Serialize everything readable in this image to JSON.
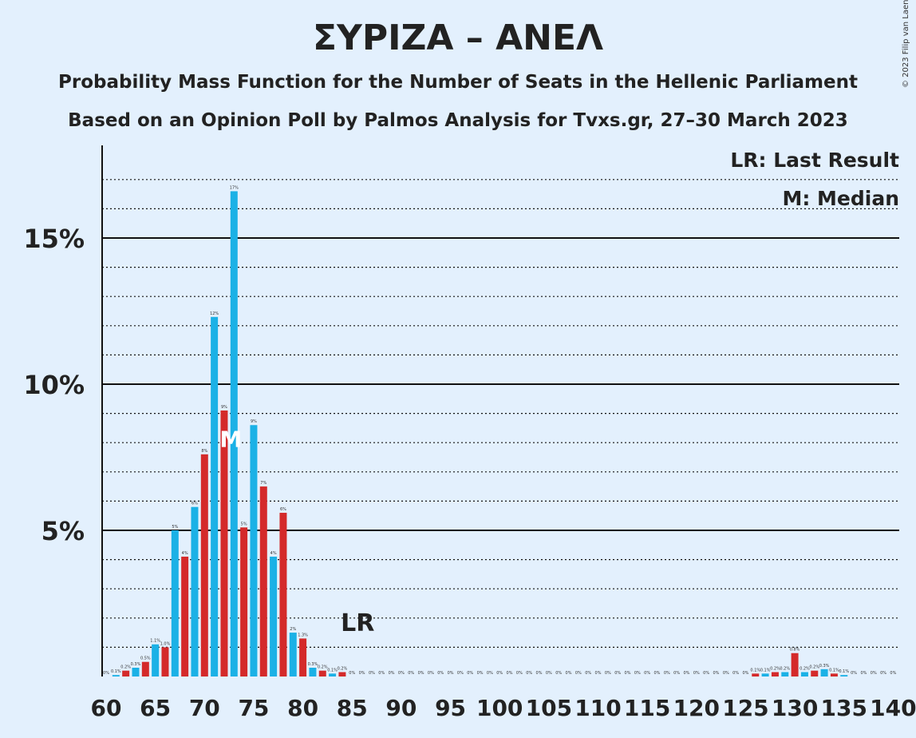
{
  "header": {
    "title": "ΣΥΡΙΖΑ – ΑΝΕΛ",
    "subtitle": "Probability Mass Function for the Number of Seats in the Hellenic Parliament",
    "subtitle2": "Based on an Opinion Poll by Palmos Analysis for Tvxs.gr, 27–30 March 2023",
    "copyright": "© 2023 Filip van Laenen"
  },
  "legend": {
    "lr": "LR: Last Result",
    "median": "M: Median"
  },
  "markers": {
    "lr_text": "LR",
    "median_text": "M"
  },
  "colors": {
    "background": "#e3f0fd",
    "series_blue": "#1bb1e6",
    "series_red": "#d42a2a"
  },
  "chart_data": {
    "type": "bar",
    "x": [
      60,
      61,
      62,
      63,
      64,
      65,
      66,
      67,
      68,
      69,
      70,
      71,
      72,
      73,
      74,
      75,
      76,
      77,
      78,
      79,
      80,
      81,
      82,
      83,
      84,
      85,
      86,
      87,
      88,
      89,
      90,
      91,
      92,
      93,
      94,
      95,
      96,
      97,
      98,
      99,
      100,
      101,
      102,
      103,
      104,
      105,
      106,
      107,
      108,
      109,
      110,
      111,
      112,
      113,
      114,
      115,
      116,
      117,
      118,
      119,
      120,
      121,
      122,
      123,
      124,
      125,
      126,
      127,
      128,
      129,
      130,
      131,
      132,
      133,
      134,
      135,
      136,
      137,
      138,
      139,
      140
    ],
    "values": [
      0,
      0.05,
      0.2,
      0.3,
      0.5,
      1.1,
      1.0,
      5.0,
      4.1,
      5.8,
      7.6,
      12.3,
      9.1,
      16.6,
      5.1,
      8.6,
      6.5,
      4.1,
      5.6,
      1.5,
      1.3,
      0.3,
      0.2,
      0.1,
      0.15,
      0,
      0,
      0,
      0,
      0,
      0,
      0,
      0,
      0,
      0,
      0,
      0,
      0,
      0,
      0,
      0,
      0,
      0,
      0,
      0,
      0,
      0,
      0,
      0,
      0,
      0,
      0,
      0,
      0,
      0,
      0,
      0,
      0,
      0,
      0,
      0,
      0,
      0,
      0,
      0,
      0,
      0.1,
      0.1,
      0.15,
      0.15,
      0.8,
      0.15,
      0.2,
      0.25,
      0.1,
      0.05,
      0,
      0,
      0,
      0,
      0
    ],
    "data_labels": [
      "0%",
      "0.1%",
      "0.2%",
      "0.3%",
      "0.5%",
      "1.1%",
      "1.0%",
      "5%",
      "4%",
      "6%",
      "8%",
      "12%",
      "9%",
      "17%",
      "5%",
      "9%",
      "7%",
      "4%",
      "6%",
      "2%",
      "1.3%",
      "0.3%",
      "0.2%",
      "0.1%",
      "0.2%",
      "0%",
      "0%",
      "0%",
      "0%",
      "0%",
      "0%",
      "0%",
      "0%",
      "0%",
      "0%",
      "0%",
      "0%",
      "0%",
      "0%",
      "0%",
      "0%",
      "0%",
      "0%",
      "0%",
      "0%",
      "0%",
      "0%",
      "0%",
      "0%",
      "0%",
      "0%",
      "0%",
      "0%",
      "0%",
      "0%",
      "0%",
      "0%",
      "0%",
      "0%",
      "0%",
      "0%",
      "0%",
      "0%",
      "0%",
      "0%",
      "0%",
      "0.1%",
      "0.1%",
      "0.2%",
      "0.2%",
      "0.8%",
      "0.2%",
      "0.2%",
      "0.3%",
      "0.1%",
      "0.1%",
      "0%",
      "0%",
      "0%",
      "0%",
      "0%"
    ],
    "last_result": 85,
    "median": 73,
    "xticks": [
      60,
      65,
      70,
      75,
      80,
      85,
      90,
      95,
      100,
      105,
      110,
      115,
      120,
      125,
      130,
      135,
      140
    ],
    "xtick_labels": [
      "60",
      "65",
      "70",
      "75",
      "80",
      "85",
      "90",
      "95",
      "100",
      "105",
      "110",
      "115",
      "120",
      "125",
      "130",
      "135",
      "140"
    ],
    "yticks": [
      5,
      10,
      15
    ],
    "ytick_labels": [
      "5%",
      "10%",
      "15%"
    ],
    "ylim": [
      0,
      18
    ],
    "xlabel": "",
    "ylabel": "",
    "grid": "solid at labelled ticks, dotted every 1%"
  }
}
